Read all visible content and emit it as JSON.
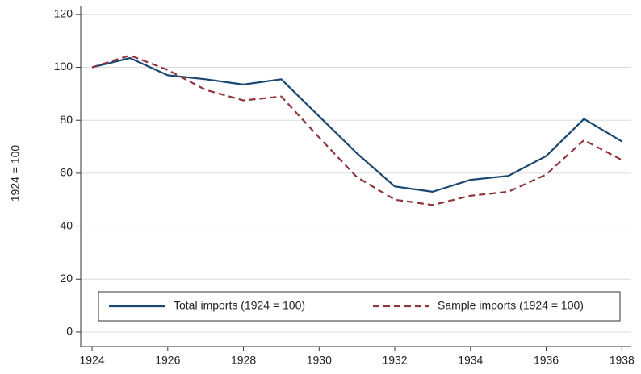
{
  "chart_data": {
    "type": "line",
    "y_label": "1924 = 100",
    "x": [
      1924,
      1925,
      1926,
      1927,
      1928,
      1929,
      1930,
      1931,
      1932,
      1933,
      1934,
      1935,
      1936,
      1937,
      1938
    ],
    "series": [
      {
        "name": "Total imports (1924 = 100)",
        "color": "#1a476f",
        "dash": false,
        "values": [
          100,
          103.5,
          97,
          95.5,
          93.5,
          95.5,
          81.5,
          67.5,
          55,
          53,
          57.5,
          59,
          66.5,
          80.5,
          72
        ]
      },
      {
        "name": "Sample imports (1924 = 100)",
        "color": "#90353b",
        "dash": true,
        "values": [
          100,
          104.5,
          99,
          91.5,
          87.5,
          89,
          73.5,
          58.5,
          50,
          48,
          51.5,
          53,
          59.5,
          72.5,
          65
        ]
      }
    ],
    "xlim": [
      1923.7,
      1938.25
    ],
    "xticks": [
      1924,
      1926,
      1928,
      1930,
      1932,
      1934,
      1936,
      1938
    ],
    "ylim": [
      -5.5,
      123
    ],
    "yticks": [
      0,
      20,
      40,
      60,
      80,
      100,
      120
    ],
    "grid": true,
    "legend": "bottom"
  }
}
